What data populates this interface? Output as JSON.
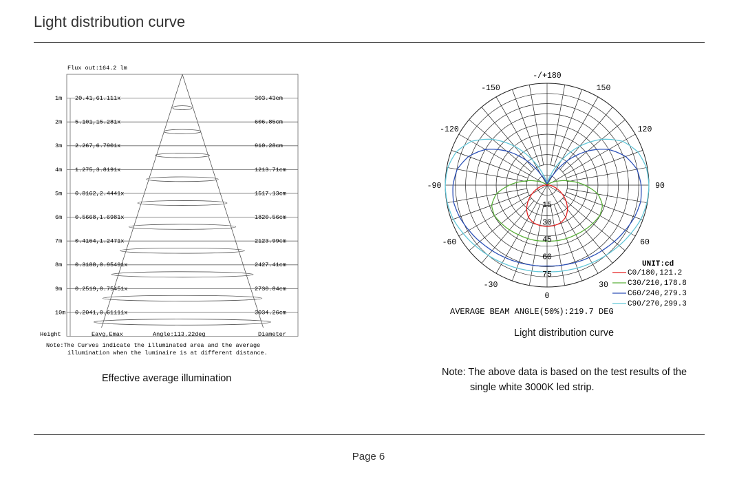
{
  "page_title": "Light distribution curve",
  "page_number": "Page 6",
  "illumination_caption": "Effective average illumination",
  "polar_caption": "Light distribution curve",
  "note": {
    "line1": "Note: The above data is based on the test results of the",
    "line2": "single white 3000K led strip."
  },
  "colors": {
    "red": "#e52222",
    "green": "#5aaf3a",
    "blue": "#2e52b8",
    "cyan": "#62c6d8",
    "grid": "#222222"
  },
  "chart_data": [
    {
      "type": "table",
      "flux_out": "Flux out:164.2 lm",
      "columns": {
        "height": "Height",
        "eavg_emax": "Eavg,Emax",
        "angle": "Angle:113.22deg",
        "diameter": "Diameter"
      },
      "rows": [
        {
          "height": "1m",
          "eavg_emax": "20.41,61.111x",
          "diameter": "303.43cm"
        },
        {
          "height": "2m",
          "eavg_emax": "5.101,15.281x",
          "diameter": "606.85cm"
        },
        {
          "height": "3m",
          "eavg_emax": "2.267,6.7901x",
          "diameter": "910.28cm"
        },
        {
          "height": "4m",
          "eavg_emax": "1.275,3.8191x",
          "diameter": "1213.71cm"
        },
        {
          "height": "5m",
          "eavg_emax": "0.8162,2.4441x",
          "diameter": "1517.13cm"
        },
        {
          "height": "6m",
          "eavg_emax": "0.5668,1.6981x",
          "diameter": "1820.56cm"
        },
        {
          "height": "7m",
          "eavg_emax": "0.4164,1.2471x",
          "diameter": "2123.99cm"
        },
        {
          "height": "8m",
          "eavg_emax": "0.3188,0.95491x",
          "diameter": "2427.41cm"
        },
        {
          "height": "9m",
          "eavg_emax": "0.2519,0.75451x",
          "diameter": "2730.84cm"
        },
        {
          "height": "10m",
          "eavg_emax": "0.2041,0.61111x",
          "diameter": "3034.26cm"
        }
      ],
      "note_line1": "Note:The Curves indicate the illuminated area and the average",
      "note_line2": "illumination when the luminaire is at different distance."
    },
    {
      "type": "polar",
      "unit": "UNIT:cd",
      "angle_labels": [
        "-/+180",
        "-150",
        "150",
        "-120",
        "120",
        "-90",
        "90",
        "-60",
        "60",
        "-30",
        "30",
        "0"
      ],
      "radial_labels": [
        "15",
        "30",
        "45",
        "60",
        "75"
      ],
      "beam_angle": "AVERAGE BEAM ANGLE(50%):219.7 DEG",
      "legend_position": "bottom-right",
      "series": [
        {
          "name": "C0/180,121.2",
          "color_key": "red",
          "max_cd": 121.2,
          "profile": [
            [
              0,
              1
            ],
            [
              10,
              0.995
            ],
            [
              20,
              0.97
            ],
            [
              30,
              0.9
            ],
            [
              40,
              0.77
            ],
            [
              50,
              0.6
            ],
            [
              60,
              0.42
            ],
            [
              70,
              0.25
            ],
            [
              80,
              0.12
            ],
            [
              90,
              0.05
            ],
            [
              100,
              0.02
            ],
            [
              110,
              0.01
            ]
          ]
        },
        {
          "name": "C30/210,178.8",
          "color_key": "green",
          "max_cd": 178.8,
          "profile": [
            [
              0,
              0.92
            ],
            [
              15,
              0.93
            ],
            [
              30,
              0.94
            ],
            [
              40,
              0.96
            ],
            [
              50,
              0.98
            ],
            [
              60,
              1.0
            ],
            [
              70,
              0.97
            ],
            [
              80,
              0.85
            ],
            [
              90,
              0.62
            ],
            [
              100,
              0.38
            ],
            [
              110,
              0.2
            ],
            [
              120,
              0.08
            ],
            [
              130,
              0.03
            ]
          ]
        },
        {
          "name": "C60/240,279.3",
          "color_key": "blue",
          "max_cd": 279.3,
          "profile": [
            [
              0,
              0.85
            ],
            [
              15,
              0.86
            ],
            [
              30,
              0.88
            ],
            [
              45,
              0.91
            ],
            [
              60,
              0.95
            ],
            [
              70,
              0.98
            ],
            [
              80,
              1.0
            ],
            [
              90,
              0.99
            ],
            [
              100,
              0.96
            ],
            [
              110,
              0.88
            ],
            [
              120,
              0.75
            ],
            [
              130,
              0.56
            ],
            [
              140,
              0.34
            ],
            [
              150,
              0.12
            ],
            [
              160,
              0.04
            ],
            [
              170,
              0.02
            ],
            [
              180,
              0.02
            ]
          ]
        },
        {
          "name": "C90/270,299.3",
          "color_key": "cyan",
          "max_cd": 299.3,
          "profile": [
            [
              0,
              0.85
            ],
            [
              15,
              0.86
            ],
            [
              30,
              0.88
            ],
            [
              45,
              0.91
            ],
            [
              60,
              0.95
            ],
            [
              70,
              0.98
            ],
            [
              80,
              0.995
            ],
            [
              90,
              1.0
            ],
            [
              100,
              0.99
            ],
            [
              110,
              0.95
            ],
            [
              120,
              0.86
            ],
            [
              130,
              0.7
            ],
            [
              140,
              0.5
            ],
            [
              150,
              0.28
            ],
            [
              160,
              0.1
            ],
            [
              170,
              0.04
            ],
            [
              180,
              0.03
            ]
          ]
        }
      ]
    }
  ]
}
